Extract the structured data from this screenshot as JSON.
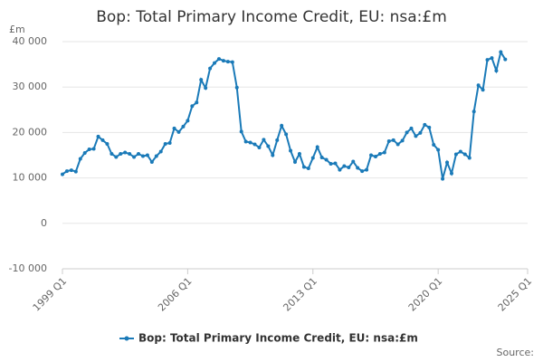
{
  "chart_data": {
    "type": "line",
    "title": "Bop: Total Primary Income Credit, EU: nsa:£m",
    "y_unit": "£m",
    "source": "Source:",
    "x": [
      1999,
      1999.25,
      1999.5,
      1999.75,
      2000,
      2000.25,
      2000.5,
      2000.75,
      2001,
      2001.25,
      2001.5,
      2001.75,
      2002,
      2002.25,
      2002.5,
      2002.75,
      2003,
      2003.25,
      2003.5,
      2003.75,
      2004,
      2004.25,
      2004.5,
      2004.75,
      2005,
      2005.25,
      2005.5,
      2005.75,
      2006,
      2006.25,
      2006.5,
      2006.75,
      2007,
      2007.25,
      2007.5,
      2007.75,
      2008,
      2008.25,
      2008.5,
      2008.75,
      2009,
      2009.25,
      2009.5,
      2009.75,
      2010,
      2010.25,
      2010.5,
      2010.75,
      2011,
      2011.25,
      2011.5,
      2011.75,
      2012,
      2012.25,
      2012.5,
      2012.75,
      2013,
      2013.25,
      2013.5,
      2013.75,
      2014,
      2014.25,
      2014.5,
      2014.75,
      2015,
      2015.25,
      2015.5,
      2015.75,
      2016,
      2016.25,
      2016.5,
      2016.75,
      2017,
      2017.25,
      2017.5,
      2017.75,
      2018,
      2018.25,
      2018.5,
      2018.75,
      2019,
      2019.25,
      2019.5,
      2019.75,
      2020,
      2020.25,
      2020.5,
      2020.75,
      2021,
      2021.25,
      2021.5,
      2021.75,
      2022,
      2022.25,
      2022.5,
      2022.75,
      2023,
      2023.25,
      2023.5,
      2023.75
    ],
    "series": [
      {
        "name": "Bop: Total Primary Income Credit, EU: nsa:£m",
        "color": "#1a7ab8",
        "values": [
          10800,
          11500,
          11700,
          11400,
          14200,
          15500,
          16300,
          16400,
          19100,
          18300,
          17500,
          15300,
          14600,
          15300,
          15600,
          15300,
          14600,
          15300,
          14800,
          15000,
          13500,
          14800,
          15800,
          17500,
          17700,
          20900,
          20100,
          21300,
          22600,
          25800,
          26600,
          31600,
          29800,
          34100,
          35300,
          36200,
          35800,
          35600,
          35500,
          29900,
          20200,
          18000,
          17800,
          17400,
          16700,
          18400,
          17000,
          15000,
          18300,
          21500,
          19600,
          16000,
          13500,
          15300,
          12400,
          12100,
          14400,
          16800,
          14500,
          14000,
          13100,
          13200,
          11800,
          12600,
          12300,
          13600,
          12200,
          11500,
          11800,
          15000,
          14700,
          15300,
          15600,
          18100,
          18300,
          17400,
          18200,
          20000,
          20900,
          19200,
          19900,
          21700,
          21100,
          17300,
          16200,
          9800,
          13400,
          11000,
          15200,
          15800,
          15200,
          14400,
          24600,
          30400,
          29400,
          36000,
          36400,
          33600,
          37700,
          36100
        ]
      }
    ],
    "xlim": [
      1999,
      2025
    ],
    "xticks": [
      {
        "value": 1999,
        "label": "1999 Q1"
      },
      {
        "value": 2006,
        "label": "2006 Q1"
      },
      {
        "value": 2013,
        "label": "2013 Q1"
      },
      {
        "value": 2020,
        "label": "2020 Q1"
      },
      {
        "value": 2025,
        "label": "2025 Q1"
      }
    ],
    "ylim": [
      -10000,
      40000
    ],
    "yticks": [
      {
        "value": -10000,
        "label": "-10 000"
      },
      0,
      {
        "value": 10000,
        "label": "10 000"
      },
      {
        "value": 20000,
        "label": "20 000"
      },
      {
        "value": 30000,
        "label": "30 000"
      },
      {
        "value": 40000,
        "label": "40 000"
      }
    ],
    "grid": true
  }
}
